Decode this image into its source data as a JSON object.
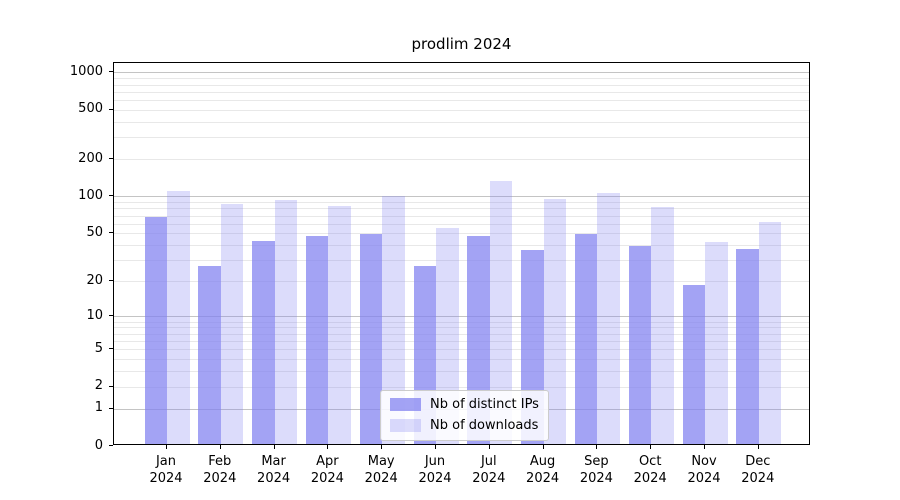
{
  "chart_data": {
    "type": "bar",
    "title": "prodlim 2024",
    "scale": "log1p",
    "ylim": [
      0,
      1190
    ],
    "y_ticks": [
      0,
      1,
      2,
      5,
      10,
      20,
      50,
      100,
      200,
      500,
      1000
    ],
    "grid": true,
    "legend_position": "bottom-center",
    "categories": [
      "Jan",
      "Feb",
      "Mar",
      "Apr",
      "May",
      "Jun",
      "Jul",
      "Aug",
      "Sep",
      "Oct",
      "Nov",
      "Dec"
    ],
    "category_year": "2024",
    "series": [
      {
        "name": "Nb of distinct IPs",
        "color": "rgba(128,128,240,0.72)",
        "values": [
          66,
          26,
          42,
          46,
          48,
          26,
          46,
          35,
          48,
          38,
          18,
          36
        ]
      },
      {
        "name": "Nb of downloads",
        "color": "rgba(128,128,240,0.28)",
        "values": [
          106,
          84,
          90,
          80,
          98,
          53,
          129,
          92,
          103,
          79,
          41,
          60
        ]
      }
    ],
    "colors": {
      "background": "#ffffff",
      "axis": "#000000",
      "grid_major": "#c4c4c4",
      "grid_minor": "#e8e8e8",
      "text": "#000000"
    }
  }
}
